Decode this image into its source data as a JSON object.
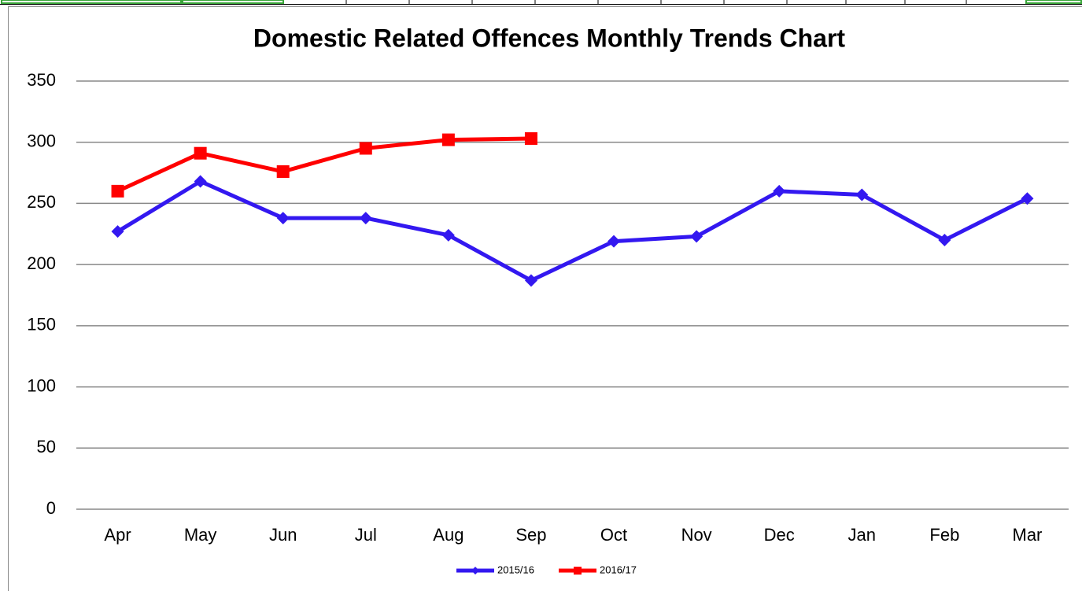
{
  "chart_data": {
    "type": "line",
    "title": "Domestic Related Offences Monthly Trends Chart",
    "categories": [
      "Apr",
      "May",
      "Jun",
      "Jul",
      "Aug",
      "Sep",
      "Oct",
      "Nov",
      "Dec",
      "Jan",
      "Feb",
      "Mar"
    ],
    "series": [
      {
        "name": "2015/16",
        "color": "#3318f0",
        "marker": "diamond",
        "values": [
          227,
          268,
          238,
          238,
          224,
          187,
          219,
          223,
          260,
          257,
          220,
          254
        ]
      },
      {
        "name": "2016/17",
        "color": "#ff0000",
        "marker": "square",
        "values": [
          260,
          291,
          276,
          295,
          302,
          303,
          null,
          null,
          null,
          null,
          null,
          null
        ]
      }
    ],
    "ylim": [
      0,
      350
    ],
    "yticks": [
      0,
      50,
      100,
      150,
      200,
      250,
      300,
      350
    ],
    "grid": true,
    "legend": "bottom"
  }
}
